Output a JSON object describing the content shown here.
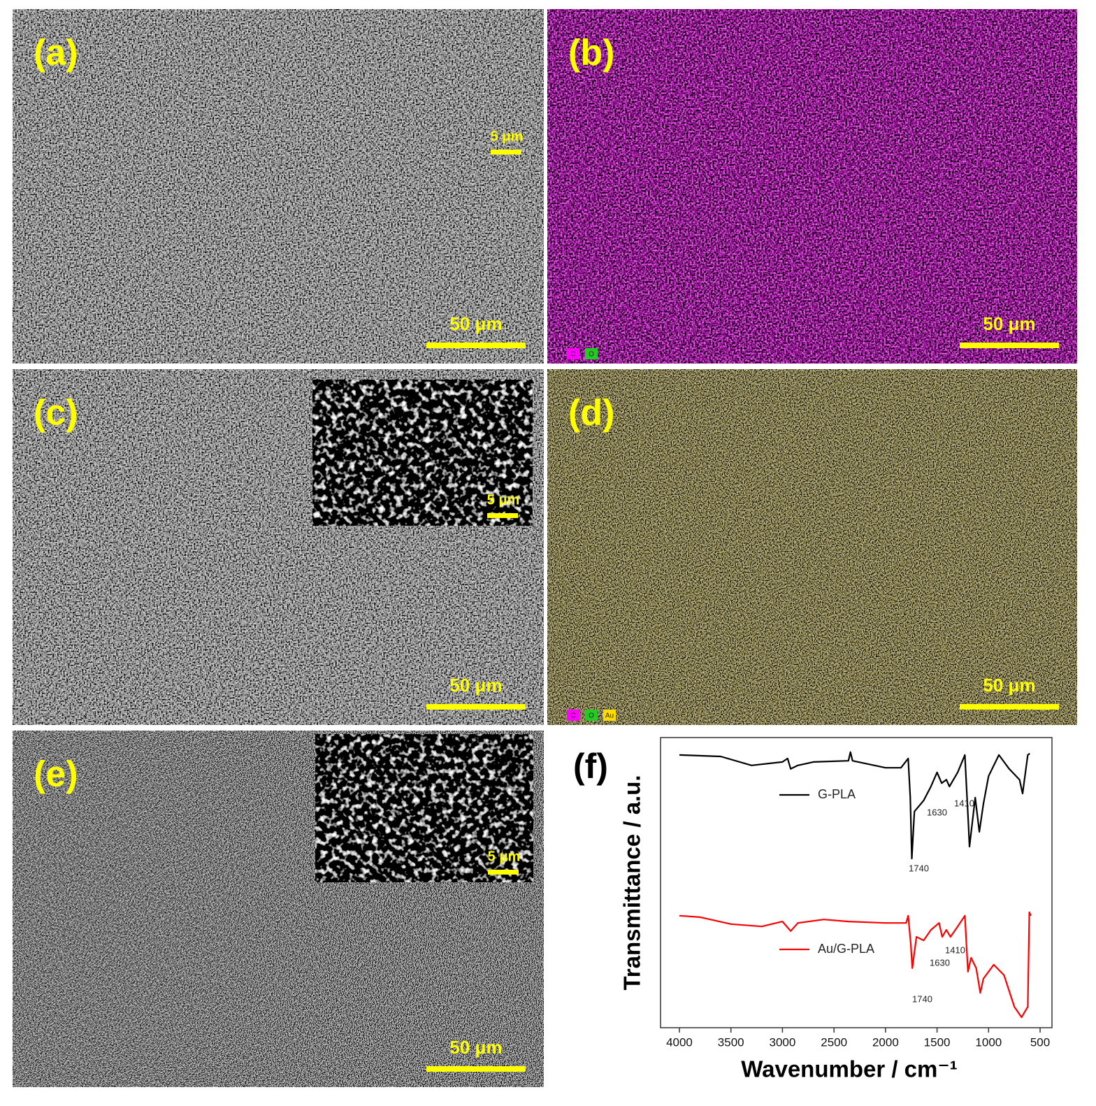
{
  "panels": [
    {
      "label": "(a)",
      "scale_bar": "50 μm",
      "inset_scale_bar": "5 μm"
    },
    {
      "label": "(b)",
      "scale_bar": "50 μm",
      "elements": [
        "C",
        "O"
      ]
    },
    {
      "label": "(c)",
      "scale_bar": "50 μm",
      "inset_scale_bar": "5 μm"
    },
    {
      "label": "(d)",
      "scale_bar": "50 μm",
      "elements": [
        "C",
        "O",
        "Au"
      ]
    },
    {
      "label": "(e)",
      "scale_bar": "50 μm",
      "inset_scale_bar": "5 μm"
    }
  ],
  "chart_data": {
    "type": "line",
    "panel_label": "(f)",
    "xlabel": "Wavenumber / cm⁻¹",
    "ylabel": "Transmittance / a.u.",
    "xlim": [
      4183,
      385
    ],
    "xticks": [
      4000,
      3500,
      3000,
      2500,
      2000,
      1500,
      1000,
      500
    ],
    "ylim": [
      0,
      100
    ],
    "series": [
      {
        "name": "G-PLA",
        "color": "#000000",
        "x": [
          4000,
          3600,
          3300,
          3000,
          2950,
          2920,
          2850,
          2700,
          2360,
          2340,
          2320,
          2000,
          1850,
          1780,
          1760,
          1745,
          1720,
          1630,
          1560,
          1500,
          1455,
          1410,
          1380,
          1300,
          1230,
          1195,
          1185,
          1130,
          1090,
          1050,
          1000,
          900,
          800,
          700,
          670,
          620,
          600
        ],
        "values": [
          94,
          93.5,
          90.4,
          91.6,
          92.8,
          89.2,
          90.4,
          91.6,
          92,
          95,
          92,
          89.6,
          89.6,
          92.8,
          79.3,
          58.3,
          74.5,
          78.3,
          83.1,
          88,
          84.3,
          85.5,
          83.1,
          88,
          94,
          69.6,
          62.4,
          79.3,
          67.5,
          77.1,
          86.7,
          94,
          89.2,
          85.5,
          80.7,
          94,
          94.5
        ],
        "peak_labels": [
          "1740",
          "1630",
          "1410"
        ]
      },
      {
        "name": "Au/G-PLA",
        "color": "#ff0000",
        "x": [
          4000,
          3800,
          3500,
          3200,
          3000,
          2920,
          2850,
          2600,
          2360,
          2000,
          1800,
          1780,
          1755,
          1740,
          1700,
          1630,
          1560,
          1480,
          1450,
          1410,
          1370,
          1300,
          1230,
          1200,
          1170,
          1120,
          1080,
          1050,
          950,
          850,
          750,
          680,
          620,
          605,
          590
        ],
        "values": [
          38.6,
          38.1,
          35.7,
          34.9,
          36.6,
          33.3,
          36.1,
          37.3,
          36.6,
          36.1,
          36.1,
          38.6,
          28.9,
          20.5,
          31.3,
          30.1,
          33.7,
          36.1,
          31.3,
          33.7,
          31.3,
          34.9,
          38.6,
          19.3,
          24.1,
          20.5,
          12,
          16.9,
          21.7,
          18.1,
          7.2,
          3.6,
          7.2,
          39.8,
          38.6
        ],
        "peak_labels": [
          "1740",
          "1630",
          "1410"
        ]
      }
    ]
  }
}
